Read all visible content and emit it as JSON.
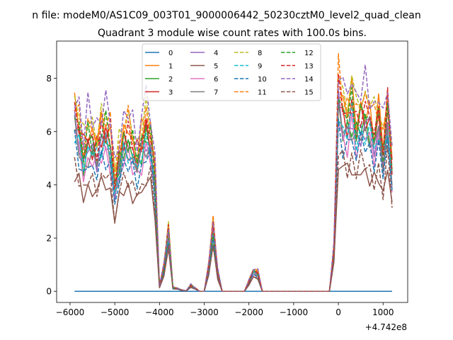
{
  "chart_data": {
    "type": "line",
    "suptitle": "n file: modeM0/AS1C09_003T01_9000006442_50230cztM0_level2_quad_clean",
    "title": "Quadrant 3 module wise count rates with 100.0s bins.",
    "xlabel": "",
    "ylabel": "",
    "x_offset_label": "+4.742e8",
    "xlim": [
      -6300,
      1550
    ],
    "ylim": [
      -0.42,
      9.4
    ],
    "x_ticks": [
      -6000,
      -5000,
      -4000,
      -3000,
      -2000,
      -1000,
      0,
      1000
    ],
    "x_tick_labels": [
      "−6000",
      "−5000",
      "−4000",
      "−3000",
      "−2000",
      "−1000",
      "0",
      "1000"
    ],
    "y_ticks": [
      0,
      2,
      4,
      6,
      8
    ],
    "y_tick_labels": [
      "0",
      "2",
      "4",
      "6",
      "8"
    ],
    "grid": false,
    "legend_location": "upper center, 4 columns",
    "x": [
      -5900,
      -5800,
      -5700,
      -5600,
      -5500,
      -5400,
      -5300,
      -5200,
      -5100,
      -5000,
      -4900,
      -4800,
      -4700,
      -4600,
      -4500,
      -4400,
      -4300,
      -4200,
      -4100,
      -4000,
      -3900,
      -3800,
      -3700,
      -3600,
      -3500,
      -3400,
      -3300,
      -3200,
      -3100,
      -3000,
      -2900,
      -2800,
      -2700,
      -2600,
      -2500,
      -2400,
      -2300,
      -2200,
      -2100,
      -2000,
      -1900,
      -1800,
      -1700,
      -1600,
      -1500,
      -1400,
      -1300,
      -1200,
      -1100,
      -1000,
      -900,
      -800,
      -700,
      -600,
      -500,
      -400,
      -300,
      -200,
      -100,
      0,
      100,
      200,
      300,
      400,
      500,
      600,
      700,
      800,
      900,
      1000,
      1100,
      1200
    ],
    "series": [
      {
        "name": "0",
        "color": "#1f77b4",
        "dash": "solid",
        "scale": 0
      },
      {
        "name": "1",
        "color": "#ff7f0e",
        "dash": "solid",
        "scale": 0.96
      },
      {
        "name": "2",
        "color": "#2ca02c",
        "dash": "solid",
        "scale": 0.86
      },
      {
        "name": "3",
        "color": "#d62728",
        "dash": "solid",
        "scale": 0.89
      },
      {
        "name": "4",
        "color": "#9467bd",
        "dash": "solid",
        "scale": 0.84
      },
      {
        "name": "5",
        "color": "#8c564b",
        "dash": "solid",
        "scale": 0.62
      },
      {
        "name": "6",
        "color": "#e377c2",
        "dash": "solid",
        "scale": 0.79
      },
      {
        "name": "7",
        "color": "#7f7f7f",
        "dash": "solid",
        "scale": 0.82
      },
      {
        "name": "8",
        "color": "#bcbd22",
        "dash": "dashed",
        "scale": 1.02
      },
      {
        "name": "9",
        "color": "#17becf",
        "dash": "dashed",
        "scale": 0.84
      },
      {
        "name": "10",
        "color": "#1f77b4",
        "dash": "dashed",
        "scale": 0.76
      },
      {
        "name": "11",
        "color": "#ff7f0e",
        "dash": "dashed",
        "scale": 0.99
      },
      {
        "name": "12",
        "color": "#2ca02c",
        "dash": "dashed",
        "scale": 0.92
      },
      {
        "name": "13",
        "color": "#d62728",
        "dash": "dashed",
        "scale": 0.94
      },
      {
        "name": "14",
        "color": "#9467bd",
        "dash": "dashed",
        "scale": 1.06
      },
      {
        "name": "15",
        "color": "#8c564b",
        "dash": "dashed",
        "scale": 0.66
      }
    ],
    "base_profile": [
      7.2,
      6.5,
      5.6,
      6.3,
      6.1,
      5.8,
      6.4,
      6.6,
      6.2,
      4.3,
      5.4,
      6.1,
      6.3,
      5.9,
      5.5,
      6.0,
      6.6,
      6.3,
      4.6,
      0.2,
      1.0,
      2.4,
      0.15,
      0.12,
      0.05,
      0.02,
      0.25,
      0.12,
      0.0,
      0.0,
      1.0,
      2.6,
      0.8,
      0.0,
      0.0,
      0.0,
      0.0,
      0.0,
      0.0,
      0.4,
      0.85,
      0.75,
      0.0,
      0.0,
      0.0,
      0.0,
      0.0,
      0.0,
      0.0,
      0.0,
      0.0,
      0.0,
      0.0,
      0.0,
      0.0,
      0.0,
      0.0,
      0.0,
      1.6,
      8.2,
      7.3,
      7.0,
      7.5,
      6.6,
      7.2,
      7.3,
      7.0,
      6.4,
      6.9,
      5.8,
      7.4,
      5.0
    ],
    "jitter": [
      0.9,
      1.12,
      0.95,
      1.06,
      0.92,
      1.08,
      0.96,
      1.1,
      0.93,
      1.05,
      0.97,
      1.09,
      0.9,
      1.04,
      1.11,
      0.94,
      1.07,
      0.98,
      1.02,
      0.91,
      1.13,
      0.95,
      1.05,
      0.99,
      1.08,
      0.92,
      1.1,
      0.96,
      1.03,
      0.94,
      1.06,
      1.09,
      0.93,
      1.01,
      0.97,
      1.12,
      0.95,
      1.04,
      0.9,
      1.07,
      1.0,
      0.98,
      1.1,
      0.94,
      1.05,
      0.92,
      1.08,
      0.96,
      1.03,
      0.99,
      1.11,
      0.93,
      1.06,
      0.97,
      1.02,
      0.95,
      1.09,
      0.91,
      1.04,
      1.0,
      0.98,
      1.07,
      0.94,
      1.1,
      0.92,
      1.05,
      0.97,
      1.12,
      0.95,
      1.03,
      0.9,
      1.06
    ]
  }
}
